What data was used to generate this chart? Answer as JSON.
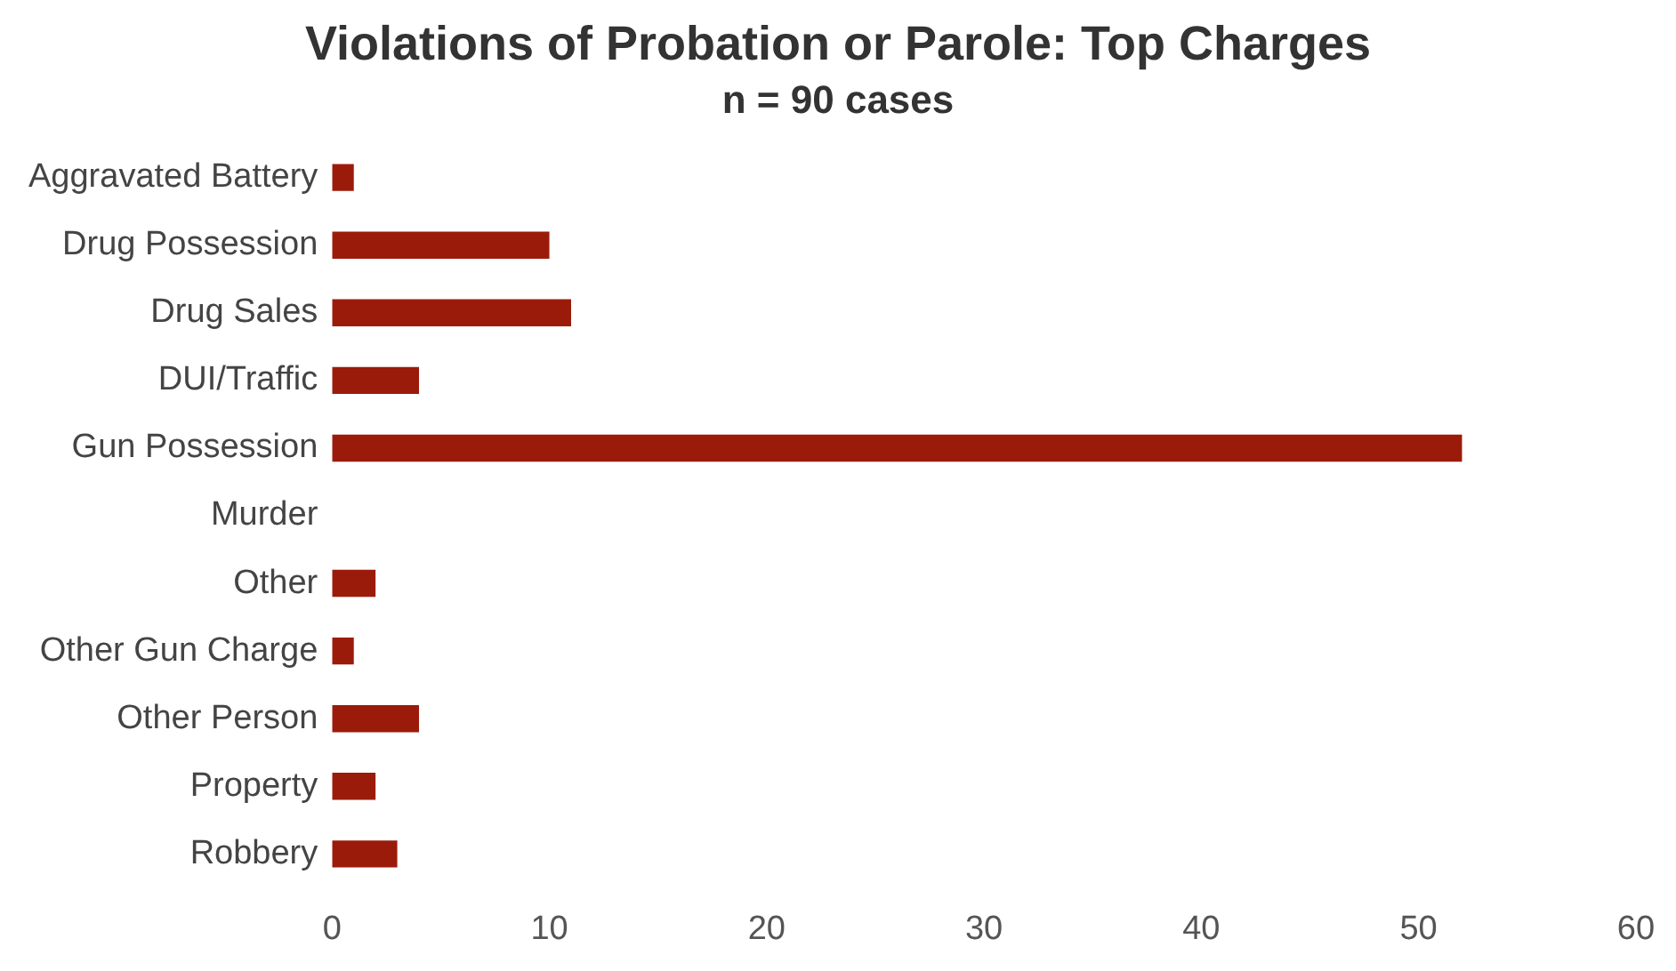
{
  "chart_data": {
    "type": "bar",
    "orientation": "horizontal",
    "title": "Violations of Probation or Parole: Top Charges",
    "subtitle": "n = 90 cases",
    "categories": [
      "Aggravated Battery",
      "Drug Possession",
      "Drug Sales",
      "DUI/Traffic",
      "Gun Possession",
      "Murder",
      "Other",
      "Other Gun Charge",
      "Other Person",
      "Property",
      "Robbery"
    ],
    "values": [
      1,
      10,
      11,
      4,
      52,
      0,
      2,
      1,
      4,
      2,
      3
    ],
    "color": "#9b1b0b",
    "xlim": [
      0,
      60
    ],
    "xticks": [
      0,
      10,
      20,
      30,
      40,
      50,
      60
    ],
    "grid": false,
    "legend": false
  }
}
